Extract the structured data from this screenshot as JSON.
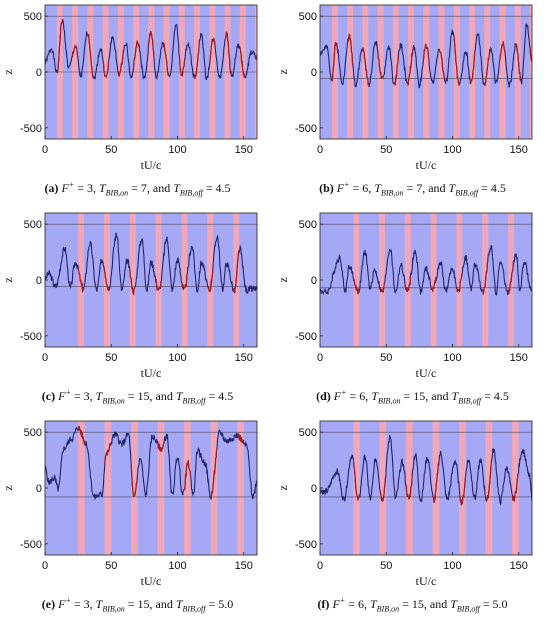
{
  "panels": [
    {
      "id": "a",
      "label": "(a)",
      "caption": {
        "Fplus": "3",
        "Ton": "7",
        "Toff": "4.5"
      },
      "chart_data": {
        "type": "line",
        "xlabel": "tU/c",
        "ylabel": "z",
        "xlim": [
          0,
          160
        ],
        "ylim": [
          -600,
          600
        ],
        "xticks": [
          0,
          50,
          100,
          150
        ],
        "yticks": [
          -500,
          0,
          500
        ],
        "ref_lines": [
          0,
          500
        ],
        "bib": {
          "start": 2,
          "on": 7,
          "off": 4.5
        },
        "peaks": [
          [
            5,
            210
          ],
          [
            13,
            460
          ],
          [
            23,
            230
          ],
          [
            32,
            350
          ],
          [
            42,
            210
          ],
          [
            51,
            310
          ],
          [
            61,
            260
          ],
          [
            70,
            260
          ],
          [
            80,
            360
          ],
          [
            89,
            260
          ],
          [
            99,
            420
          ],
          [
            108,
            240
          ],
          [
            118,
            340
          ],
          [
            127,
            290
          ],
          [
            137,
            340
          ],
          [
            146,
            240
          ],
          [
            156,
            180
          ]
        ],
        "troughs": [
          [
            9,
            -10
          ],
          [
            18,
            40
          ],
          [
            27,
            -40
          ],
          [
            37,
            -60
          ],
          [
            46,
            -50
          ],
          [
            56,
            -20
          ],
          [
            65,
            -50
          ],
          [
            75,
            -60
          ],
          [
            84,
            -50
          ],
          [
            94,
            -40
          ],
          [
            103,
            -20
          ],
          [
            113,
            -50
          ],
          [
            122,
            -60
          ],
          [
            132,
            -50
          ],
          [
            141,
            -40
          ],
          [
            151,
            -50
          ]
        ],
        "start_y": 90,
        "end_y": 130,
        "noise": 22,
        "seed": 1
      }
    },
    {
      "id": "b",
      "label": "(b)",
      "caption": {
        "Fplus": "6",
        "Ton": "7",
        "Toff": "4.5"
      },
      "chart_data": {
        "type": "line",
        "xlabel": "tU/c",
        "ylabel": "z",
        "xlim": [
          0,
          160
        ],
        "ylim": [
          -600,
          600
        ],
        "xticks": [
          0,
          50,
          100,
          150
        ],
        "yticks": [
          -500,
          0,
          500
        ],
        "ref_lines": [
          -60,
          500
        ],
        "bib": {
          "start": 2,
          "on": 7,
          "off": 4.5
        },
        "peaks": [
          [
            5,
            220
          ],
          [
            12,
            260
          ],
          [
            22,
            320
          ],
          [
            32,
            210
          ],
          [
            42,
            270
          ],
          [
            52,
            230
          ],
          [
            61,
            240
          ],
          [
            71,
            220
          ],
          [
            80,
            240
          ],
          [
            90,
            210
          ],
          [
            100,
            360
          ],
          [
            110,
            180
          ],
          [
            119,
            340
          ],
          [
            129,
            200
          ],
          [
            138,
            260
          ],
          [
            148,
            250
          ],
          [
            156,
            420
          ]
        ],
        "troughs": [
          [
            9,
            -60
          ],
          [
            17,
            -90
          ],
          [
            27,
            -110
          ],
          [
            37,
            -110
          ],
          [
            47,
            -70
          ],
          [
            56,
            -120
          ],
          [
            66,
            -110
          ],
          [
            75,
            -120
          ],
          [
            85,
            -100
          ],
          [
            95,
            -100
          ],
          [
            105,
            -120
          ],
          [
            114,
            -100
          ],
          [
            124,
            -110
          ],
          [
            133,
            -100
          ],
          [
            143,
            -120
          ],
          [
            152,
            -90
          ]
        ],
        "start_y": 170,
        "end_y": 110,
        "noise": 25,
        "seed": 2
      }
    },
    {
      "id": "c",
      "label": "(c)",
      "caption": {
        "Fplus": "3",
        "Ton": "15",
        "Toff": "4.5"
      },
      "chart_data": {
        "type": "line",
        "xlabel": "tU/c",
        "ylabel": "z",
        "xlim": [
          0,
          160
        ],
        "ylim": [
          -600,
          600
        ],
        "xticks": [
          0,
          50,
          100,
          150
        ],
        "yticks": [
          -500,
          0,
          500
        ],
        "ref_lines": [
          -60,
          500
        ],
        "bib": {
          "start": 10,
          "on": 15,
          "off": 4.5
        },
        "peaks": [
          [
            3,
            60
          ],
          [
            15,
            280
          ],
          [
            23,
            160
          ],
          [
            34,
            330
          ],
          [
            43,
            180
          ],
          [
            54,
            410
          ],
          [
            62,
            170
          ],
          [
            73,
            370
          ],
          [
            80,
            160
          ],
          [
            92,
            370
          ],
          [
            100,
            180
          ],
          [
            111,
            300
          ],
          [
            118,
            160
          ],
          [
            130,
            390
          ],
          [
            137,
            150
          ],
          [
            147,
            280
          ]
        ],
        "troughs": [
          [
            8,
            -60
          ],
          [
            19,
            -70
          ],
          [
            29,
            -80
          ],
          [
            39,
            -90
          ],
          [
            48,
            -70
          ],
          [
            58,
            -90
          ],
          [
            67,
            -100
          ],
          [
            77,
            -90
          ],
          [
            86,
            -90
          ],
          [
            96,
            -80
          ],
          [
            105,
            -90
          ],
          [
            115,
            -90
          ],
          [
            124,
            -90
          ],
          [
            134,
            -80
          ],
          [
            143,
            -100
          ],
          [
            152,
            -90
          ],
          [
            160,
            -80
          ]
        ],
        "start_y": 10,
        "end_y": -80,
        "noise": 30,
        "seed": 3
      }
    },
    {
      "id": "d",
      "label": "(d)",
      "caption": {
        "Fplus": "6",
        "Ton": "15",
        "Toff": "4.5"
      },
      "chart_data": {
        "type": "line",
        "xlabel": "tU/c",
        "ylabel": "z",
        "xlim": [
          0,
          160
        ],
        "ylim": [
          -600,
          600
        ],
        "xticks": [
          0,
          50,
          100,
          150
        ],
        "yticks": [
          -500,
          0,
          500
        ],
        "ref_lines": [
          -70,
          500
        ],
        "bib": {
          "start": 10,
          "on": 15,
          "off": 4.5
        },
        "peaks": [
          [
            15,
            200
          ],
          [
            22,
            120
          ],
          [
            34,
            250
          ],
          [
            41,
            90
          ],
          [
            53,
            280
          ],
          [
            61,
            130
          ],
          [
            72,
            250
          ],
          [
            80,
            100
          ],
          [
            91,
            150
          ],
          [
            100,
            110
          ],
          [
            110,
            200
          ],
          [
            117,
            140
          ],
          [
            129,
            300
          ],
          [
            136,
            160
          ],
          [
            148,
            220
          ],
          [
            154,
            160
          ]
        ],
        "troughs": [
          [
            5,
            -110
          ],
          [
            19,
            -100
          ],
          [
            29,
            -100
          ],
          [
            38,
            -80
          ],
          [
            47,
            -110
          ],
          [
            57,
            -110
          ],
          [
            66,
            -100
          ],
          [
            76,
            -110
          ],
          [
            85,
            -80
          ],
          [
            95,
            -100
          ],
          [
            104,
            -110
          ],
          [
            114,
            -80
          ],
          [
            123,
            -110
          ],
          [
            133,
            -110
          ],
          [
            142,
            -110
          ],
          [
            151,
            -90
          ],
          [
            160,
            -100
          ]
        ],
        "start_y": -100,
        "end_y": -100,
        "noise": 28,
        "seed": 4
      }
    },
    {
      "id": "e",
      "label": "(e)",
      "caption": {
        "Fplus": "3",
        "Ton": "15",
        "Toff": "5.0"
      },
      "chart_data": {
        "type": "line",
        "xlabel": "tU/c",
        "ylabel": "z",
        "xlim": [
          0,
          160
        ],
        "ylim": [
          -600,
          600
        ],
        "xticks": [
          0,
          50,
          100,
          150
        ],
        "yticks": [
          -500,
          0,
          500
        ],
        "ref_lines": [
          -80,
          500
        ],
        "bib": {
          "start": 10,
          "on": 15,
          "off": 5.0
        },
        "peaks": [
          [
            7,
            90
          ],
          [
            14,
            350
          ],
          [
            20,
            440
          ],
          [
            25,
            540
          ],
          [
            31,
            400
          ],
          [
            46,
            300
          ],
          [
            53,
            480
          ],
          [
            58,
            390
          ],
          [
            63,
            480
          ],
          [
            72,
            260
          ],
          [
            81,
            460
          ],
          [
            88,
            350
          ],
          [
            92,
            470
          ],
          [
            100,
            280
          ],
          [
            108,
            220
          ],
          [
            115,
            330
          ],
          [
            121,
            220
          ],
          [
            132,
            500
          ],
          [
            137,
            420
          ],
          [
            145,
            470
          ],
          [
            152,
            380
          ]
        ],
        "troughs": [
          [
            3,
            50
          ],
          [
            10,
            -10
          ],
          [
            37,
            -80
          ],
          [
            43,
            -60
          ],
          [
            67,
            -80
          ],
          [
            76,
            -60
          ],
          [
            96,
            -70
          ],
          [
            104,
            -60
          ],
          [
            112,
            -60
          ],
          [
            125,
            -80
          ],
          [
            157,
            -80
          ]
        ],
        "start_y": 180,
        "end_y": 60,
        "noise": 30,
        "seed": 5
      }
    },
    {
      "id": "f",
      "label": "(f)",
      "caption": {
        "Fplus": "6",
        "Ton": "15",
        "Toff": "5.0"
      },
      "chart_data": {
        "type": "line",
        "xlabel": "tU/c",
        "ylabel": "z",
        "xlim": [
          0,
          160
        ],
        "ylim": [
          -600,
          600
        ],
        "xticks": [
          0,
          50,
          100,
          150
        ],
        "yticks": [
          -500,
          0,
          500
        ],
        "ref_lines": [
          -80,
          500
        ],
        "bib": {
          "start": 10,
          "on": 15,
          "off": 5.0
        },
        "peaks": [
          [
            13,
            150
          ],
          [
            24,
            290
          ],
          [
            34,
            280
          ],
          [
            42,
            260
          ],
          [
            53,
            460
          ],
          [
            62,
            230
          ],
          [
            72,
            300
          ],
          [
            81,
            270
          ],
          [
            91,
            310
          ],
          [
            102,
            240
          ],
          [
            112,
            250
          ],
          [
            121,
            250
          ],
          [
            131,
            340
          ],
          [
            141,
            180
          ],
          [
            153,
            340
          ],
          [
            158,
            110
          ]
        ],
        "troughs": [
          [
            4,
            -40
          ],
          [
            18,
            -100
          ],
          [
            29,
            -110
          ],
          [
            38,
            -100
          ],
          [
            47,
            -100
          ],
          [
            57,
            -90
          ],
          [
            67,
            -100
          ],
          [
            76,
            -110
          ],
          [
            86,
            -110
          ],
          [
            96,
            -100
          ],
          [
            107,
            -130
          ],
          [
            117,
            -90
          ],
          [
            126,
            -110
          ],
          [
            136,
            -120
          ],
          [
            146,
            -100
          ],
          [
            160,
            -90
          ]
        ],
        "start_y": -20,
        "end_y": -90,
        "noise": 28,
        "seed": 6
      }
    }
  ],
  "caption_parts": {
    "fplus_sym": "F",
    "fplus_sup": "+",
    "t_sym": "T",
    "on_sub": "BIB,on",
    "off_sub": "BIB,off",
    "eq": " = ",
    "sep": ", ",
    "and": ", and "
  },
  "colors": {
    "background": "#a5a8f5",
    "bib_band": "#f2a7b8",
    "line": "#24246b",
    "highlight": "#9b1f2a",
    "ref_line": "#4a4a60",
    "axis": "#222222"
  }
}
